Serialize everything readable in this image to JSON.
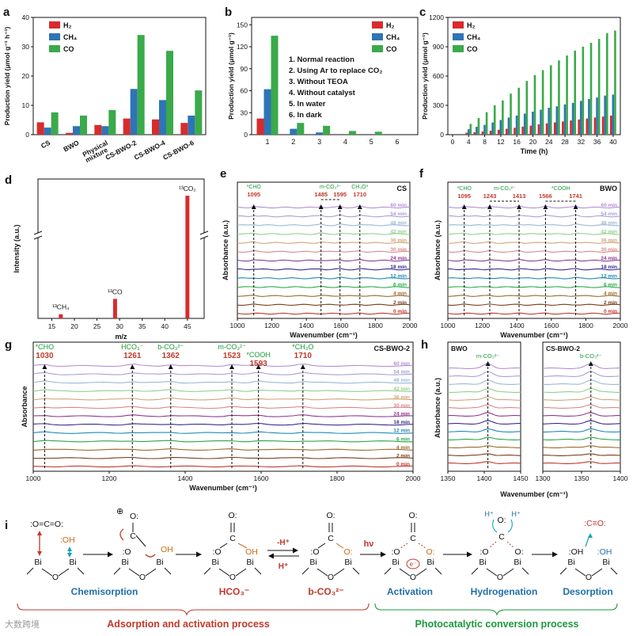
{
  "colors": {
    "H2": "#d92b2b",
    "CH4": "#2f74b6",
    "CO": "#3aaa4a",
    "red_text": "#c0392b",
    "green_text": "#1a9a3a",
    "blue_text": "#1f6fa8",
    "orange": "#c86a14",
    "teal": "#16a3b8"
  },
  "chart_data": [
    {
      "id": "a",
      "type": "bar",
      "panel_label": "a",
      "ylabel": "Production yield (μmol g⁻¹ h⁻¹)",
      "ylim": [
        0,
        40
      ],
      "yticks": [
        "0",
        "10",
        "20",
        "30",
        "40"
      ],
      "categories": [
        "CS",
        "BWO",
        "Physical mixture",
        "CS-BWO-2",
        "CS-BWO-4",
        "CS-BWO-6"
      ],
      "cat_lines": [
        [
          "CS"
        ],
        [
          "BWO"
        ],
        [
          "Physical",
          "mixture"
        ],
        [
          "CS-BWO-2"
        ],
        [
          "CS-BWO-4"
        ],
        [
          "CS-BWO-6"
        ]
      ],
      "legend": [
        "H₂",
        "CH₄",
        "CO"
      ],
      "series": [
        {
          "name": "H2",
          "values": [
            4.2,
            0.6,
            3.3,
            5.5,
            5.2,
            4.0
          ]
        },
        {
          "name": "CH4",
          "values": [
            2.4,
            2.9,
            2.9,
            15.6,
            11.8,
            6.5
          ]
        },
        {
          "name": "CO",
          "values": [
            7.6,
            6.5,
            8.4,
            34.0,
            28.6,
            15.1
          ]
        }
      ]
    },
    {
      "id": "b",
      "type": "bar",
      "panel_label": "b",
      "ylabel": "Production yield (μmol g⁻¹)",
      "ylim": [
        0,
        160
      ],
      "yticks": [
        "0",
        "30",
        "60",
        "90",
        "120",
        "150"
      ],
      "categories": [
        "1",
        "2",
        "3",
        "4",
        "5",
        "6"
      ],
      "legend": [
        "H₂",
        "CH₄",
        "CO"
      ],
      "series": [
        {
          "name": "H2",
          "values": [
            22,
            0,
            0,
            0,
            0,
            0
          ]
        },
        {
          "name": "CH4",
          "values": [
            62,
            8,
            3,
            0,
            0,
            0
          ]
        },
        {
          "name": "CO",
          "values": [
            135,
            16,
            12,
            5,
            4,
            0
          ]
        }
      ],
      "notes": [
        "1. Normal reaction",
        "2. Using Ar to replace CO₂",
        "3. Without TEOA",
        "4. Without catalyst",
        "5. In water",
        "6. In dark"
      ]
    },
    {
      "id": "c",
      "type": "bar",
      "panel_label": "c",
      "xlabel": "Time (h)",
      "ylabel": "Production yield (μmol g⁻¹)",
      "ylim": [
        0,
        1200
      ],
      "yticks": [
        "0",
        "300",
        "600",
        "900",
        "1200"
      ],
      "xticks": [
        "0",
        "4",
        "8",
        "12",
        "16",
        "20",
        "24",
        "28",
        "32",
        "36",
        "40"
      ],
      "legend": [
        "H₂",
        "CH₄",
        "CO"
      ],
      "x": [
        4,
        6,
        8,
        10,
        12,
        14,
        16,
        18,
        20,
        22,
        24,
        26,
        28,
        30,
        32,
        34,
        36,
        38,
        40
      ],
      "series": [
        {
          "name": "H2",
          "values": [
            20,
            25,
            32,
            40,
            50,
            60,
            70,
            82,
            92,
            105,
            115,
            125,
            135,
            145,
            155,
            165,
            175,
            185,
            195
          ]
        },
        {
          "name": "CH4",
          "values": [
            55,
            80,
            100,
            125,
            150,
            175,
            195,
            215,
            235,
            255,
            275,
            290,
            310,
            325,
            345,
            365,
            380,
            400,
            410
          ]
        },
        {
          "name": "CO",
          "values": [
            110,
            170,
            230,
            300,
            350,
            420,
            480,
            550,
            610,
            660,
            710,
            760,
            810,
            860,
            900,
            940,
            980,
            1040,
            1065
          ]
        }
      ]
    },
    {
      "id": "d",
      "type": "bar",
      "panel_label": "d",
      "xlabel": "m/z",
      "ylabel": "Intensity (a.u.)",
      "xticks": [
        "15",
        "20",
        "25",
        "30",
        "35",
        "40",
        "45"
      ],
      "peaks": [
        {
          "mz": 17,
          "label": "¹³CH₄",
          "height": 0.03
        },
        {
          "mz": 29,
          "label": "¹³CO",
          "height": 0.14
        },
        {
          "mz": 45,
          "label": "¹³CO₂",
          "height": 0.88
        }
      ]
    },
    {
      "id": "e",
      "type": "line",
      "panel_label": "e",
      "sample": "CS",
      "xlabel": "Wavenumber (cm⁻¹)",
      "ylabel": "Absorbance (a.u.)",
      "xlim": [
        1000,
        2000
      ],
      "xticks": [
        "1000",
        "1200",
        "1400",
        "1600",
        "1800",
        "2000"
      ],
      "time_labels": [
        "0 min",
        "2 min",
        "4 min",
        "6 min",
        "12 min",
        "18 min",
        "24 min",
        "30 min",
        "36 min",
        "42 min",
        "48 min",
        "54 min",
        "60 min"
      ],
      "peaks": [
        {
          "name": "*CHO",
          "wn": "1095",
          "at": 1095
        },
        {
          "name": "m-CO₃²⁻",
          "wn": "1485",
          "at": 1485
        },
        {
          "name": "",
          "wn": "1595",
          "at": 1595
        },
        {
          "name": "CH₃O*",
          "wn": "1710",
          "at": 1710
        }
      ]
    },
    {
      "id": "f",
      "type": "line",
      "panel_label": "f",
      "sample": "BWO",
      "xlabel": "Wavenumber (cm⁻¹)",
      "ylabel": "Absorbance (a.u.)",
      "xlim": [
        1000,
        2000
      ],
      "xticks": [
        "1000",
        "1200",
        "1400",
        "1600",
        "1800",
        "2000"
      ],
      "time_labels": [
        "0 min",
        "2 min",
        "4 min",
        "6 min",
        "12 min",
        "18 min",
        "24 min",
        "30 min",
        "36 min",
        "42 min",
        "48 min",
        "54 min",
        "60 min"
      ],
      "peaks": [
        {
          "name": "*CHO",
          "wn": "1095",
          "at": 1095
        },
        {
          "name": "m-CO₃²⁻",
          "wn": "1243",
          "at": 1243
        },
        {
          "name": "",
          "wn": "1413",
          "at": 1413
        },
        {
          "name": "*COOH",
          "wn": "1566",
          "at": 1566
        },
        {
          "name": "",
          "wn": "1741",
          "at": 1741
        }
      ]
    },
    {
      "id": "g",
      "type": "line",
      "panel_label": "g",
      "sample": "CS-BWO-2",
      "xlabel": "Wavenumber (cm⁻¹)",
      "ylabel": "Absorbance",
      "xlim": [
        1000,
        2000
      ],
      "xticks": [
        "1000",
        "1200",
        "1400",
        "1600",
        "1800",
        "2000"
      ],
      "time_labels": [
        "0 min",
        "2 min",
        "4 min",
        "6 min",
        "12 min",
        "18 min",
        "24 min",
        "30 min",
        "36 min",
        "42 min",
        "48 min",
        "54 min",
        "60 min"
      ],
      "peaks": [
        {
          "name": "*CHO",
          "wn": "1030",
          "at": 1030
        },
        {
          "name": "HCO₃⁻",
          "wn": "1261",
          "at": 1261
        },
        {
          "name": "b-CO₃²⁻",
          "wn": "1362",
          "at": 1362
        },
        {
          "name": "m-CO₃²⁻",
          "wn": "1523",
          "at": 1523
        },
        {
          "name": "*COOH",
          "wn": "1593",
          "at": 1593
        },
        {
          "name": "*CH₃O",
          "wn": "1710",
          "at": 1710
        }
      ]
    },
    {
      "id": "h",
      "type": "line",
      "panel_label": "h",
      "xlabel": "Wavenumber (cm⁻¹)",
      "ylabel": "Absorbance (a.u.)",
      "subpanels": [
        {
          "sample": "BWO",
          "peak": "m-CO₃²⁻",
          "at": 1405,
          "xticks": [
            "1350",
            "1400",
            "1450"
          ],
          "xlim": [
            1350,
            1450
          ]
        },
        {
          "sample": "CS-BWO-2",
          "peak": "b-CO₃²⁻",
          "at": 1362,
          "xticks": [
            "1300",
            "1350",
            "1400"
          ],
          "xlim": [
            1300,
            1400
          ]
        }
      ]
    }
  ],
  "scheme": {
    "panel_label": "i",
    "stage_labels": [
      "Chemisorption",
      "HCO₃⁻",
      "b-CO₃²⁻",
      "Activation",
      "Hydrogenation",
      "Desorption"
    ],
    "group_labels": [
      "Adsorption and activation process",
      "Photocatalytic conversion process"
    ],
    "arrow_labels": {
      "minus_h": "-H⁺",
      "plus_h": "H⁺",
      "light": "hν"
    },
    "atoms": {
      "bi": "Bi",
      "o": "O",
      "oh": "OH",
      "c": "C",
      "h_plus": "H⁺",
      "electron": "e⁻",
      "plus": "⊕"
    },
    "watermark": "大数跨境"
  }
}
